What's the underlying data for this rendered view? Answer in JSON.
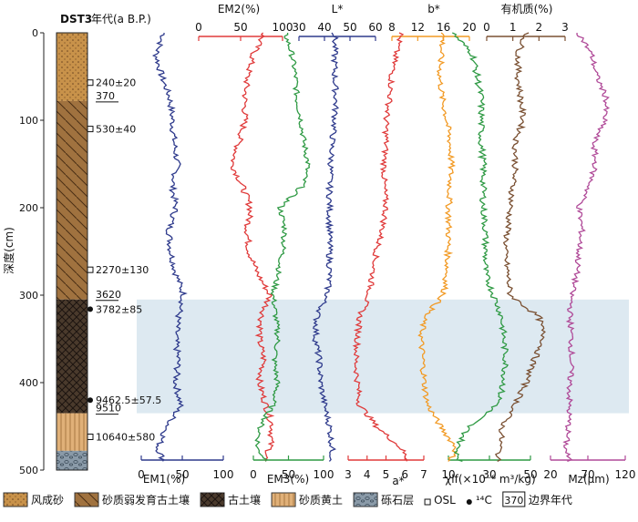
{
  "chart_data": {
    "type": "line",
    "core_name": "DST3",
    "age_header": "年代(a B.P.)",
    "depth_axis": {
      "label": "深度(cm)",
      "ticks": [
        0,
        100,
        200,
        300,
        400,
        500
      ],
      "range": [
        0,
        500
      ]
    },
    "shaded_interval": {
      "from": 305,
      "to": 435,
      "color": "#dde9f1"
    },
    "stratigraphy": [
      {
        "unit": "风成砂",
        "from": 0,
        "to": 78,
        "color": "#c8924a",
        "pattern": "dots"
      },
      {
        "unit": "砂质弱发育古土壤",
        "from": 78,
        "to": 305,
        "color": "#a0723f",
        "pattern": "hatch"
      },
      {
        "unit": "古土壤",
        "from": 305,
        "to": 435,
        "color": "#4a3a2c",
        "pattern": "cross"
      },
      {
        "unit": "砂质黄土",
        "from": 435,
        "to": 478,
        "color": "#e0b078",
        "pattern": "vlines"
      },
      {
        "unit": "砾石层",
        "from": 478,
        "to": 500,
        "color": "#8a9aa8",
        "pattern": "gravel"
      }
    ],
    "ages": [
      {
        "text": "240±20",
        "depth": 57,
        "kind": "OSL"
      },
      {
        "text": "530±40",
        "depth": 110,
        "kind": "OSL"
      },
      {
        "text": "2270±130",
        "depth": 271,
        "kind": "OSL"
      },
      {
        "text": "3782±85",
        "depth": 316,
        "kind": "14C"
      },
      {
        "text": "9462.5±57.5",
        "depth": 420,
        "kind": "14C"
      },
      {
        "text": "10640±580",
        "depth": 462,
        "kind": "OSL"
      }
    ],
    "boundary_ages": [
      {
        "text": "370",
        "depth": 78
      },
      {
        "text": "3620",
        "depth": 305
      },
      {
        "text": "9510",
        "depth": 435
      }
    ],
    "series": [
      {
        "name": "EM1(%)",
        "unit": "%",
        "color": "#2e3a8c",
        "axis": "bottom",
        "range": [
          0,
          100
        ],
        "ticks": [
          0,
          50,
          100
        ],
        "depth": [
          0,
          25,
          50,
          75,
          100,
          125,
          150,
          175,
          200,
          225,
          250,
          275,
          300,
          325,
          350,
          375,
          400,
          425,
          450,
          475,
          490
        ],
        "values": [
          28,
          18,
          25,
          35,
          38,
          40,
          44,
          38,
          42,
          34,
          36,
          42,
          52,
          45,
          42,
          45,
          42,
          48,
          32,
          20,
          28
        ]
      },
      {
        "name": "EM2(%)",
        "unit": "%",
        "color": "#e03a3a",
        "axis": "top",
        "range": [
          0,
          100
        ],
        "ticks": [
          0,
          50,
          100
        ],
        "depth": [
          0,
          25,
          50,
          75,
          100,
          125,
          150,
          175,
          200,
          225,
          250,
          275,
          300,
          325,
          350,
          375,
          400,
          425,
          450,
          475,
          490
        ],
        "values": [
          78,
          65,
          58,
          55,
          55,
          48,
          40,
          52,
          62,
          58,
          60,
          70,
          85,
          75,
          72,
          78,
          72,
          80,
          88,
          85,
          78
        ]
      },
      {
        "name": "EM3(%)",
        "unit": "%",
        "color": "#2f9a44",
        "axis": "bottom",
        "range": [
          0,
          100
        ],
        "ticks": [
          0,
          50,
          100
        ],
        "depth": [
          0,
          25,
          50,
          75,
          100,
          125,
          150,
          175,
          200,
          225,
          250,
          275,
          300,
          325,
          350,
          375,
          400,
          425,
          450,
          475,
          490
        ],
        "values": [
          45,
          55,
          60,
          62,
          68,
          72,
          78,
          70,
          38,
          45,
          42,
          35,
          28,
          32,
          35,
          30,
          34,
          28,
          10,
          5,
          20
        ]
      },
      {
        "name": "L*",
        "unit": "",
        "color": "#2e3a8c",
        "axis": "top",
        "range": [
          30,
          60
        ],
        "ticks": [
          30,
          40,
          50,
          60
        ],
        "depth": [
          0,
          25,
          50,
          75,
          100,
          125,
          150,
          175,
          200,
          225,
          250,
          275,
          300,
          325,
          350,
          375,
          400,
          425,
          450,
          475,
          490
        ],
        "values": [
          44,
          44,
          44,
          44.5,
          44,
          43,
          42.5,
          42,
          42,
          42,
          42,
          42,
          41,
          37,
          36.5,
          38,
          38.5,
          40,
          42,
          43,
          43
        ]
      },
      {
        "name": "a*",
        "unit": "",
        "color": "#e03a3a",
        "axis": "bottom",
        "range": [
          3,
          7
        ],
        "ticks": [
          3,
          4,
          5,
          6,
          7
        ],
        "depth": [
          0,
          25,
          50,
          75,
          100,
          125,
          150,
          175,
          200,
          225,
          250,
          275,
          300,
          325,
          350,
          375,
          400,
          425,
          450,
          475,
          490
        ],
        "values": [
          5.8,
          5.5,
          5.3,
          5.2,
          5.0,
          5.0,
          4.9,
          4.9,
          5.0,
          4.8,
          4.5,
          4.3,
          4.1,
          3.6,
          3.5,
          3.4,
          3.5,
          3.6,
          4.5,
          5.8,
          6.2
        ]
      },
      {
        "name": "b*",
        "unit": "",
        "color": "#f29a24",
        "axis": "top",
        "range": [
          8,
          20
        ],
        "ticks": [
          8,
          12,
          16,
          20
        ],
        "depth": [
          0,
          25,
          50,
          75,
          100,
          125,
          150,
          175,
          200,
          225,
          250,
          275,
          300,
          325,
          350,
          375,
          400,
          425,
          450,
          475,
          490
        ],
        "values": [
          16,
          15.6,
          15.4,
          15.8,
          16.5,
          17,
          17.2,
          17,
          16.8,
          16.8,
          16.7,
          16.5,
          16,
          13,
          12.5,
          12.8,
          13,
          13.5,
          15.5,
          18,
          17
        ]
      },
      {
        "name": "χlf(×10⁻⁸ m³/kg)",
        "unit": "×10⁻⁸ m³/kg",
        "color": "#2f9a44",
        "axis": "bottom",
        "range": [
          10,
          50
        ],
        "ticks": [
          10,
          30,
          50
        ],
        "depth": [
          0,
          25,
          50,
          75,
          100,
          125,
          150,
          175,
          200,
          225,
          250,
          275,
          300,
          325,
          350,
          375,
          400,
          425,
          450,
          475,
          490
        ],
        "values": [
          12,
          22,
          24,
          26,
          26,
          26,
          27,
          27,
          27,
          28,
          28,
          28,
          32,
          36,
          37,
          38,
          37,
          34,
          20,
          14,
          16
        ]
      },
      {
        "name": "有机质(%)",
        "unit": "%",
        "color": "#7a5032",
        "axis": "top",
        "range": [
          0,
          3
        ],
        "ticks": [
          0,
          1,
          2,
          3
        ],
        "depth": [
          0,
          25,
          50,
          75,
          100,
          125,
          150,
          175,
          200,
          225,
          250,
          275,
          300,
          325,
          350,
          375,
          400,
          425,
          450,
          475,
          490
        ],
        "values": [
          1.5,
          1.2,
          1.2,
          1.3,
          1.4,
          1.1,
          1.1,
          1.0,
          0.9,
          0.8,
          0.7,
          0.8,
          0.9,
          2.0,
          2.2,
          1.8,
          1.5,
          1.1,
          0.6,
          0.5,
          0.4
        ]
      },
      {
        "name": "Mz(μm)",
        "unit": "μm",
        "color": "#b04a98",
        "axis": "bottom",
        "range": [
          20,
          120
        ],
        "ticks": [
          20,
          70,
          120
        ],
        "depth": [
          0,
          25,
          50,
          75,
          100,
          125,
          150,
          175,
          200,
          225,
          250,
          275,
          300,
          325,
          350,
          375,
          400,
          425,
          450,
          475,
          490
        ],
        "values": [
          58,
          75,
          82,
          95,
          92,
          78,
          80,
          72,
          58,
          62,
          58,
          55,
          48,
          46,
          48,
          48,
          46,
          45,
          44,
          40,
          45
        ]
      }
    ],
    "legend": {
      "items": [
        {
          "label": "风成砂",
          "key": "dots"
        },
        {
          "label": "砂质弱发育古土壤",
          "key": "hatch"
        },
        {
          "label": "古土壤",
          "key": "cross"
        },
        {
          "label": "砂质黄土",
          "key": "vlines"
        },
        {
          "label": "砾石层",
          "key": "gravel"
        },
        {
          "label": "OSL",
          "key": "square"
        },
        {
          "label": "¹⁴C",
          "key": "dot"
        },
        {
          "label": "边界年代",
          "key": "boxnum",
          "sample": "370"
        }
      ]
    }
  }
}
